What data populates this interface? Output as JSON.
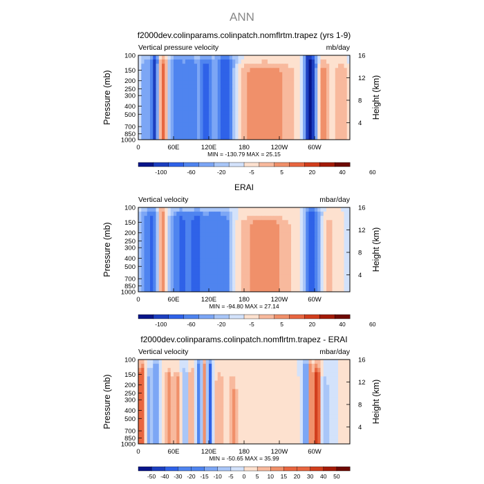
{
  "figure": {
    "main_title": "ANN",
    "colors": {
      "bg": "#ffffff",
      "text": "#000000",
      "palette": [
        "#08158a",
        "#1c3fc0",
        "#2f62e8",
        "#4f84ef",
        "#7ca6f5",
        "#a9c6f8",
        "#d3e2fb",
        "#fde1cf",
        "#f8b99d",
        "#f0906a",
        "#e86640",
        "#d13e1d",
        "#a41b08",
        "#6e0a02"
      ]
    }
  },
  "chart_data": [
    {
      "type": "heatmap",
      "title": "f2000dev.colinparams.colinpatch.nomflrtm.trapez (yrs 1-9)",
      "left_label": "Vertical pressure velocity",
      "right_label": "mb/day",
      "ylabel": "Pressure (mb)",
      "right_axis_label": "Height (km)",
      "y_ticks": [
        "100",
        "150",
        "200",
        "250",
        "300",
        "400",
        "500",
        "700",
        "850",
        "1000"
      ],
      "height_ticks": [
        "16",
        "12",
        "8",
        "4"
      ],
      "x_ticks": [
        "0",
        "60E",
        "120E",
        "180",
        "120W",
        "60W"
      ],
      "stats": "MIN = -130.79   MAX =  25.15",
      "colorbar_labels": [
        "-100",
        "-60",
        "-20",
        "-5",
        "5",
        "20",
        "40",
        "60"
      ],
      "colorbar_levels": 14,
      "features": [
        {
          "lon": 12,
          "w": 7,
          "top": 0.12,
          "amp": -0.45
        },
        {
          "lon": 28,
          "w": 5,
          "top": 0.05,
          "amp": -0.8
        },
        {
          "lon": 42,
          "w": 5,
          "top": 0.1,
          "amp": 0.5
        },
        {
          "lon": 63,
          "w": 8,
          "top": 0.1,
          "amp": -0.5
        },
        {
          "lon": 88,
          "w": 14,
          "top": 0.1,
          "amp": -0.55
        },
        {
          "lon": 116,
          "w": 8,
          "top": 0.1,
          "amp": -0.55
        },
        {
          "lon": 148,
          "w": 13,
          "top": 0.08,
          "amp": -0.8
        },
        {
          "lon": 215,
          "w": 35,
          "top": 0.2,
          "amp": 0.45
        },
        {
          "lon": 290,
          "w": 6,
          "top": 0.05,
          "amp": -0.95
        },
        {
          "lon": 300,
          "w": 5,
          "top": 0.1,
          "amp": -0.5
        },
        {
          "lon": 315,
          "w": 7,
          "top": 0.15,
          "amp": 0.35
        },
        {
          "lon": 345,
          "w": 10,
          "top": 0.2,
          "amp": 0.25
        }
      ]
    },
    {
      "type": "heatmap",
      "title": "ERAI",
      "left_label": "Vertical velocity",
      "right_label": "mbar/day",
      "ylabel": "Pressure (mb)",
      "right_axis_label": "Height (km)",
      "y_ticks": [
        "100",
        "150",
        "200",
        "250",
        "300",
        "400",
        "500",
        "700",
        "850",
        "1000"
      ],
      "height_ticks": [
        "16",
        "12",
        "8",
        "4"
      ],
      "x_ticks": [
        "0",
        "60E",
        "120E",
        "180",
        "120W",
        "60W"
      ],
      "stats": "MIN = -94.80   MAX =  27.14",
      "colorbar_labels": [
        "-100",
        "-60",
        "-20",
        "-5",
        "5",
        "20",
        "40",
        "60"
      ],
      "colorbar_levels": 14,
      "features": [
        {
          "lon": 12,
          "w": 8,
          "top": 0.1,
          "amp": -0.45
        },
        {
          "lon": 26,
          "w": 6,
          "top": 0.1,
          "amp": -0.55
        },
        {
          "lon": 40,
          "w": 5,
          "top": 0.1,
          "amp": 0.45
        },
        {
          "lon": 70,
          "w": 12,
          "top": 0.12,
          "amp": -0.55
        },
        {
          "lon": 100,
          "w": 14,
          "top": 0.12,
          "amp": -0.6
        },
        {
          "lon": 130,
          "w": 12,
          "top": 0.12,
          "amp": -0.5
        },
        {
          "lon": 150,
          "w": 10,
          "top": 0.15,
          "amp": -0.45
        },
        {
          "lon": 215,
          "w": 32,
          "top": 0.2,
          "amp": 0.4
        },
        {
          "lon": 292,
          "w": 7,
          "top": 0.08,
          "amp": -0.65
        },
        {
          "lon": 305,
          "w": 6,
          "top": 0.1,
          "amp": -0.45
        },
        {
          "lon": 325,
          "w": 10,
          "top": 0.2,
          "amp": 0.2
        }
      ]
    },
    {
      "type": "heatmap",
      "title": "f2000dev.colinparams.colinpatch.nomflrtm.trapez - ERAI",
      "left_label": "Vertical velocity",
      "right_label": "mbar/day",
      "ylabel": "Pressure (mb)",
      "right_axis_label": "Height (km)",
      "y_ticks": [
        "100",
        "150",
        "200",
        "250",
        "300",
        "400",
        "500",
        "700",
        "850",
        "1000"
      ],
      "height_ticks": [
        "16",
        "12",
        "8",
        "4"
      ],
      "x_ticks": [
        "0",
        "60E",
        "120E",
        "180",
        "120W",
        "60W"
      ],
      "stats": "MIN = -50.65   MAX =  35.99",
      "colorbar_labels": [
        "-50",
        "-40",
        "-30",
        "-20",
        "-15",
        "-10",
        "-5",
        "0",
        "5",
        "10",
        "15",
        "20",
        "30",
        "40",
        "50"
      ],
      "colorbar_levels": 16,
      "features": [
        {
          "lon": 6,
          "w": 5,
          "top": 0.15,
          "amp": 0.6
        },
        {
          "lon": 18,
          "w": 4,
          "top": 0.2,
          "amp": -0.35
        },
        {
          "lon": 30,
          "w": 4,
          "top": 0.1,
          "amp": -0.5
        },
        {
          "lon": 52,
          "w": 4,
          "top": 0.2,
          "amp": 0.35
        },
        {
          "lon": 66,
          "w": 4,
          "top": 0.25,
          "amp": 0.4
        },
        {
          "lon": 80,
          "w": 4,
          "top": 0.2,
          "amp": -0.35
        },
        {
          "lon": 90,
          "w": 4,
          "top": 0.2,
          "amp": 0.35
        },
        {
          "lon": 104,
          "w": 3,
          "top": 0.1,
          "amp": -0.7
        },
        {
          "lon": 113,
          "w": 3,
          "top": 0.1,
          "amp": 0.45
        },
        {
          "lon": 121,
          "w": 3,
          "top": 0.1,
          "amp": -0.85
        },
        {
          "lon": 138,
          "w": 5,
          "top": 0.25,
          "amp": 0.3
        },
        {
          "lon": 160,
          "w": 5,
          "top": 0.3,
          "amp": 0.3
        },
        {
          "lon": 195,
          "w": 25,
          "top": 0.4,
          "amp": 0.12
        },
        {
          "lon": 285,
          "w": 3,
          "top": 0.1,
          "amp": -0.6
        },
        {
          "lon": 293,
          "w": 3,
          "top": 0.1,
          "amp": 0.4
        },
        {
          "lon": 304,
          "w": 4,
          "top": 0.15,
          "amp": 0.7
        },
        {
          "lon": 318,
          "w": 4,
          "top": 0.3,
          "amp": -0.3
        }
      ]
    }
  ]
}
